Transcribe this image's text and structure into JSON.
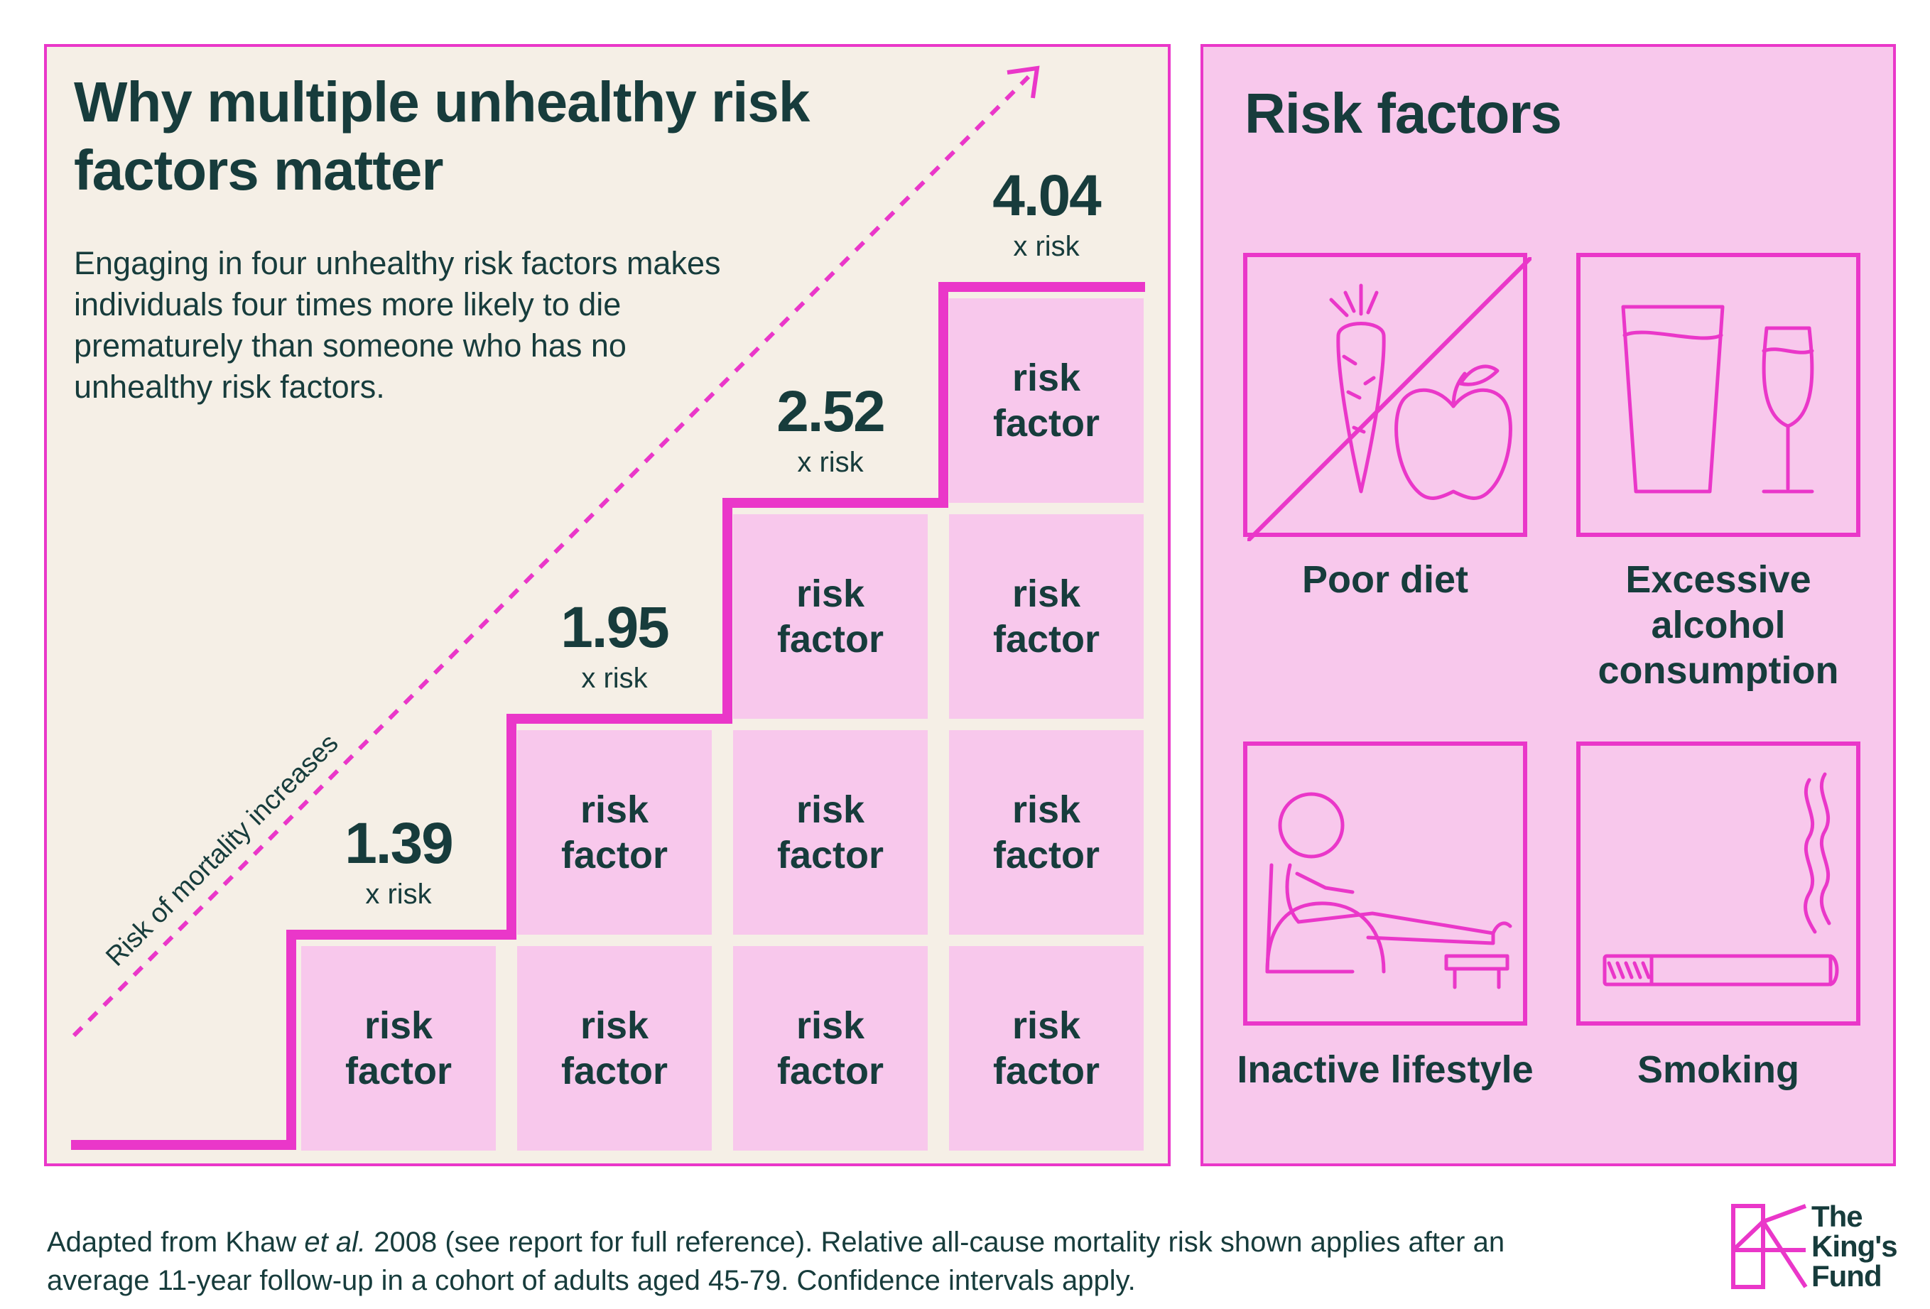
{
  "colors": {
    "accent": "#ea37c9",
    "ink": "#173c3c",
    "beige": "#f5efe6",
    "pink": "#f8c8ec"
  },
  "title": "Why multiple unhealthy risk factors matter",
  "intro": "Engaging in four unhealthy risk factors makes individuals four times more likely to die prematurely than someone who has no unhealthy risk factors.",
  "arrow_label": "Risk of mortality increases",
  "cell_label": "risk\nfactor",
  "chart_data": {
    "type": "bar",
    "categories": [
      "1",
      "2",
      "3",
      "4"
    ],
    "values": [
      1.39,
      1.95,
      2.52,
      4.04
    ],
    "value_labels": [
      "1.39",
      "1.95",
      "2.52",
      "4.04"
    ],
    "unit_label": "x risk",
    "stack_counts": [
      1,
      2,
      3,
      4
    ]
  },
  "risk_factors": {
    "title": "Risk factors",
    "items": [
      {
        "label": "Poor diet",
        "icon": "carrot-apple-crossed-icon"
      },
      {
        "label": "Excessive alcohol consumption",
        "icon": "glasses-icon"
      },
      {
        "label": "Inactive lifestyle",
        "icon": "reclining-person-icon"
      },
      {
        "label": "Smoking",
        "icon": "cigarette-icon"
      }
    ]
  },
  "footnote": {
    "before": "Adapted from Khaw ",
    "em": "et al.",
    "after": " 2008 (see report for full reference). Relative all-cause mortality risk shown applies after an average 11-year follow-up in a cohort of adults aged 45-79. Confidence intervals apply."
  },
  "logo": {
    "text": "The King's Fund"
  }
}
